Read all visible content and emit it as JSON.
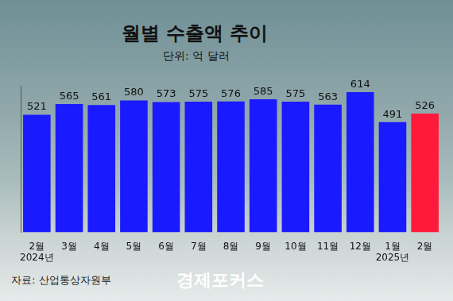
{
  "chart_data": {
    "type": "bar",
    "title": "월별 수출액 추이",
    "subtitle": "단위: 억 달러",
    "categories": [
      "2월\n2024년",
      "3월",
      "4월",
      "5월",
      "6월",
      "7월",
      "8월",
      "9월",
      "10월",
      "11월",
      "12월",
      "1월\n2025년",
      "2월"
    ],
    "values": [
      521,
      565,
      561,
      580,
      573,
      575,
      576,
      585,
      575,
      563,
      614,
      491,
      526
    ],
    "colors": [
      "#1a1aff",
      "#1a1aff",
      "#1a1aff",
      "#1a1aff",
      "#1a1aff",
      "#1a1aff",
      "#1a1aff",
      "#1a1aff",
      "#1a1aff",
      "#1a1aff",
      "#1a1aff",
      "#1a1aff",
      "#ff1a3c"
    ],
    "ylim": [
      40,
      640
    ],
    "yticks": [],
    "grid": false,
    "data_labels": true,
    "tick_labels": "x",
    "source": "자료: 산업통상자원부",
    "brand": "경제포커스"
  }
}
